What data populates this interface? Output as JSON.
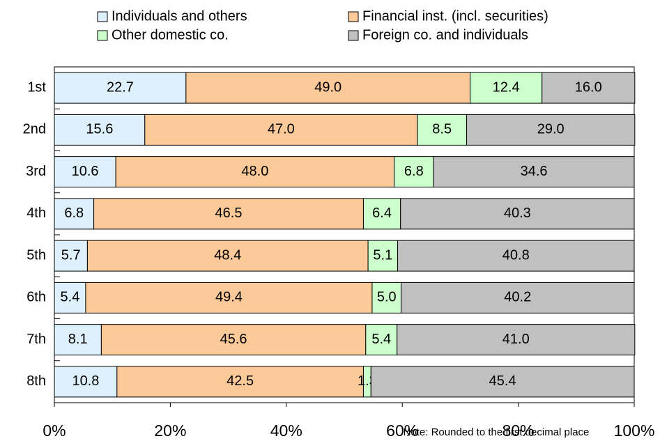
{
  "chart_data": {
    "type": "stacked_bar_horizontal",
    "categories": [
      "1st",
      "2nd",
      "3rd",
      "4th",
      "5th",
      "6th",
      "7th",
      "8th"
    ],
    "series": [
      {
        "name": "Individuals and others",
        "color": "#ddf0fb",
        "values": [
          22.7,
          15.6,
          10.6,
          6.8,
          5.7,
          5.4,
          8.1,
          10.8
        ],
        "value_labels": [
          "22.7",
          "15.6",
          "10.6",
          "6.8",
          "5.7",
          "5.4",
          "8.1",
          "10.8"
        ]
      },
      {
        "name": "Financial inst. (incl. securities)",
        "color": "#fcc999",
        "values": [
          49.0,
          47.0,
          48.0,
          46.5,
          48.4,
          49.4,
          45.6,
          42.5
        ],
        "value_labels": [
          "49.0",
          "47.0",
          "48.0",
          "46.5",
          "48.4",
          "49.4",
          "45.6",
          "42.5"
        ]
      },
      {
        "name": "Other domestic co.",
        "color": "#ccffcc",
        "values": [
          12.4,
          8.5,
          6.8,
          6.4,
          5.1,
          5.0,
          5.4,
          1.3
        ],
        "value_labels": [
          "12.4",
          "8.5",
          "6.8",
          "6.4",
          "5.1",
          "5.0",
          "5.4",
          "1.3"
        ]
      },
      {
        "name": "Foreign co. and individuals",
        "color": "#c0c0c0",
        "values": [
          16.0,
          29.0,
          34.6,
          40.3,
          40.8,
          40.2,
          41.0,
          45.4
        ],
        "value_labels": [
          "16.0",
          "29.0",
          "34.6",
          "40.3",
          "40.8",
          "40.2",
          "41.0",
          "45.4"
        ]
      }
    ],
    "xlim": [
      0,
      100
    ],
    "xticks": [
      {
        "value": 0,
        "label": "0%"
      },
      {
        "value": 20,
        "label": "20%"
      },
      {
        "value": 40,
        "label": "40%"
      },
      {
        "value": 60,
        "label": "60%"
      },
      {
        "value": 80,
        "label": "80%"
      },
      {
        "value": 100,
        "label": "100%"
      }
    ],
    "note": "Note: Rounded to the first decimal place",
    "legend": "top"
  }
}
